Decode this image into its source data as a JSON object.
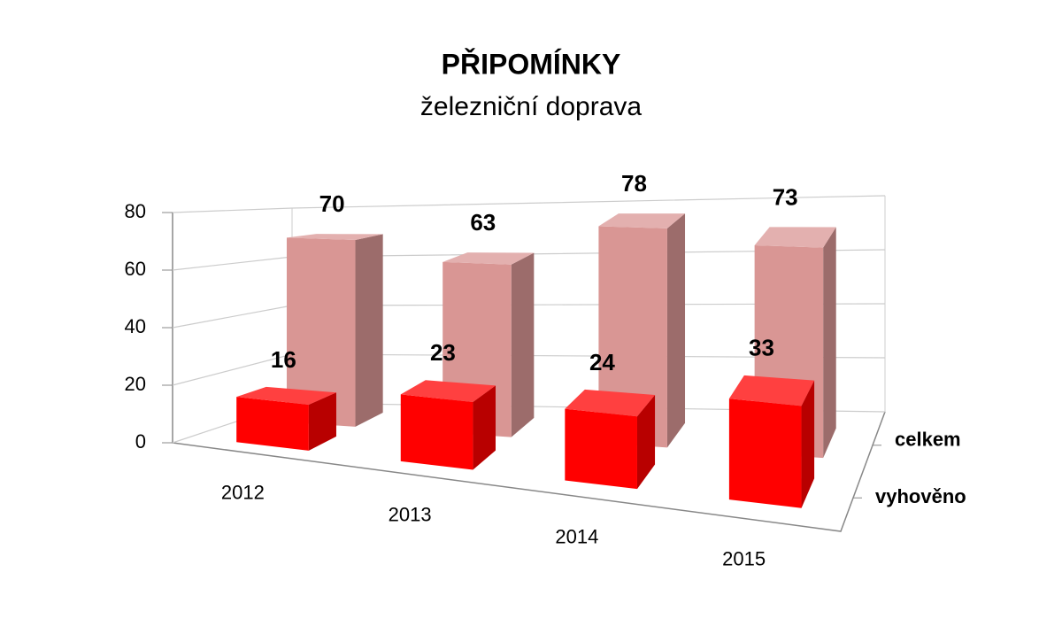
{
  "chart_data": {
    "type": "bar3d",
    "title": "PŘIPOMÍNKY",
    "subtitle": "železniční doprava",
    "categories": [
      "2012",
      "2013",
      "2014",
      "2015"
    ],
    "series": [
      {
        "name": "celkem",
        "color": "#d99694",
        "values": [
          70,
          63,
          78,
          73
        ]
      },
      {
        "name": "vyhověno",
        "color": "#ff0000",
        "values": [
          16,
          23,
          24,
          33
        ]
      }
    ],
    "ylim": [
      0,
      80
    ],
    "yticks": [
      0,
      20,
      40,
      60,
      80
    ],
    "grid": true
  }
}
